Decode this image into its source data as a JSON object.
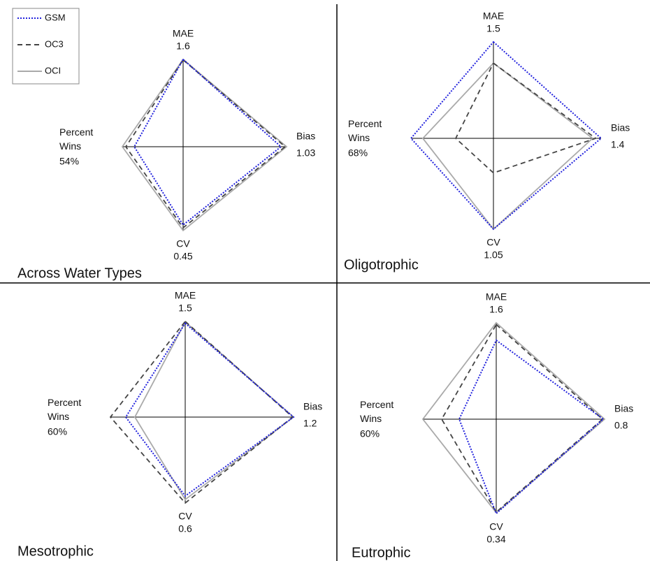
{
  "chart_data": [
    {
      "type": "radar",
      "title": "Across Water Types",
      "legend": "upper left",
      "axes": [
        "MAE",
        "Bias",
        "CV",
        "Percent Wins"
      ],
      "axis_max": [
        1.6,
        1.03,
        0.45,
        {
          "value": 54,
          "label": "54%"
        }
      ],
      "series": [
        {
          "name": "GSM",
          "color": "#2222dd",
          "dash": "dotted",
          "values": [
            1.6,
            0.974,
            0.42,
            43.4
          ]
        },
        {
          "name": "OC3",
          "color": "#444444",
          "dash": "dashed",
          "values": [
            1.59,
            1.016,
            0.435,
            50.9
          ]
        },
        {
          "name": "OCI",
          "color": "#aaaaaa",
          "dash": "solid",
          "values": [
            1.6,
            1.03,
            0.45,
            54
          ]
        }
      ]
    },
    {
      "type": "radar",
      "title": "Oligotrophic",
      "axes": [
        "MAE",
        "Bias",
        "CV",
        "Percent Wins"
      ],
      "axis_max": [
        1.5,
        1.4,
        1.05,
        {
          "value": 68,
          "label": "68%"
        }
      ],
      "series": [
        {
          "name": "GSM",
          "color": "#2222dd",
          "dash": "dotted",
          "values": [
            1.5,
            1.4,
            1.05,
            68
          ]
        },
        {
          "name": "OC3",
          "color": "#444444",
          "dash": "dashed",
          "values": [
            1.17,
            1.33,
            0.4,
            31.1
          ]
        },
        {
          "name": "OCI",
          "color": "#aaaaaa",
          "dash": "solid",
          "values": [
            1.17,
            1.29,
            1.05,
            58.2
          ]
        }
      ]
    },
    {
      "type": "radar",
      "title": "Mesotrophic",
      "axes": [
        "MAE",
        "Bias",
        "CV",
        "Percent Wins"
      ],
      "axis_max": [
        1.5,
        1.2,
        0.6,
        {
          "value": 60,
          "label": "60%"
        }
      ],
      "series": [
        {
          "name": "GSM",
          "color": "#2222dd",
          "dash": "dotted",
          "values": [
            1.47,
            1.2,
            0.551,
            47.7
          ]
        },
        {
          "name": "OC3",
          "color": "#444444",
          "dash": "dashed",
          "values": [
            1.5,
            1.19,
            0.6,
            60
          ]
        },
        {
          "name": "OCI",
          "color": "#aaaaaa",
          "dash": "solid",
          "values": [
            1.49,
            1.2,
            0.576,
            40.4
          ]
        }
      ]
    },
    {
      "type": "radar",
      "title": "Eutrophic",
      "axes": [
        "MAE",
        "Bias",
        "CV",
        "Percent Wins"
      ],
      "axis_max": [
        1.6,
        0.8,
        0.34,
        {
          "value": 60,
          "label": "60%"
        }
      ],
      "series": [
        {
          "name": "GSM",
          "color": "#2222dd",
          "dash": "dotted",
          "values": [
            1.31,
            0.79,
            0.34,
            30.3
          ]
        },
        {
          "name": "OC3",
          "color": "#444444",
          "dash": "dashed",
          "values": [
            1.57,
            0.785,
            0.335,
            44.6
          ]
        },
        {
          "name": "OCI",
          "color": "#aaaaaa",
          "dash": "solid",
          "values": [
            1.6,
            0.8,
            0.337,
            60
          ]
        }
      ]
    }
  ]
}
